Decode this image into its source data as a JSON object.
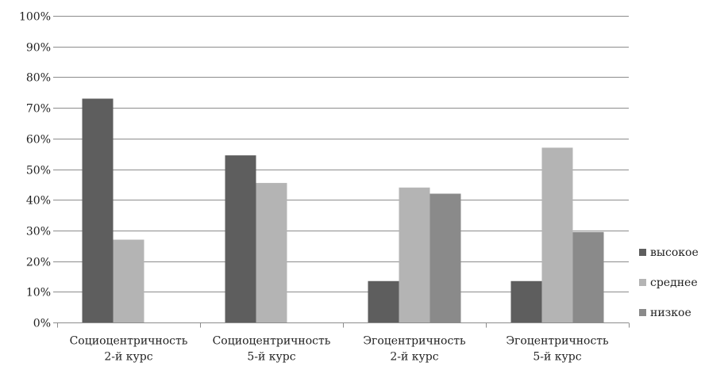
{
  "chart_data": {
    "type": "bar",
    "title": "",
    "xlabel": "",
    "ylabel": "",
    "ylim": [
      0,
      100
    ],
    "y_tick_step": 10,
    "y_tick_format": "{v}%",
    "y_ticks": [
      "0%",
      "10%",
      "20%",
      "30%",
      "40%",
      "50%",
      "60%",
      "70%",
      "80%",
      "90%",
      "100%"
    ],
    "grid": true,
    "legend_position": "right",
    "categories": [
      [
        "Социоцентричность",
        "2-й курс"
      ],
      [
        "Социоцентричность",
        "5-й курс"
      ],
      [
        "Эгоцентричность",
        "2-й курс"
      ],
      [
        "Эгоцентричность",
        "5-й курс"
      ]
    ],
    "series": [
      {
        "name": "высокое",
        "color": "#5e5e5e",
        "values": [
          73,
          54.5,
          13.5,
          13.5
        ]
      },
      {
        "name": "среднее",
        "color": "#b4b4b4",
        "values": [
          27,
          45.5,
          44,
          57
        ]
      },
      {
        "name": "низкое",
        "color": "#8a8a8a",
        "values": [
          0,
          0,
          42,
          29.5
        ]
      }
    ]
  }
}
